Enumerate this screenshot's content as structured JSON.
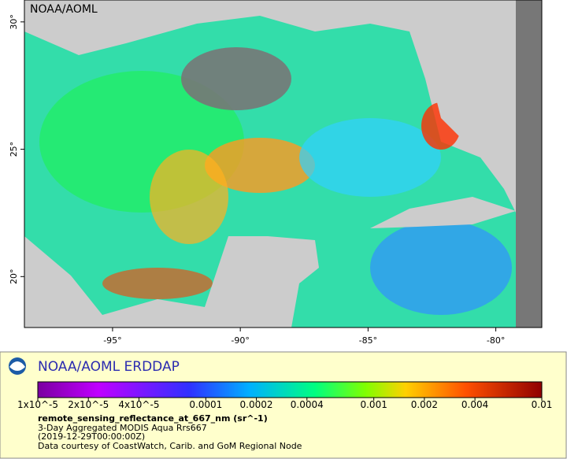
{
  "map": {
    "corner_label": "NOAA/AOML",
    "xlim": [
      -98.45,
      -78.2
    ],
    "ylim": [
      18.0,
      30.86
    ],
    "xticks": [
      {
        "value": -95,
        "label": "-95°"
      },
      {
        "value": -90,
        "label": "-90°"
      },
      {
        "value": -85,
        "label": "-85°"
      },
      {
        "value": -80,
        "label": "-80°"
      }
    ],
    "yticks": [
      {
        "value": 20,
        "label": "20°"
      },
      {
        "value": 25,
        "label": "25°"
      },
      {
        "value": 30,
        "label": "30°"
      }
    ]
  },
  "legend": {
    "title": "NOAA/AOML ERDDAP",
    "colorbar": {
      "log_scale": true,
      "lim": [
        1e-05,
        0.01
      ],
      "ticks": [
        {
          "value": 1e-05,
          "label": "1x10^-5"
        },
        {
          "value": 2e-05,
          "label": "2x10^-5"
        },
        {
          "value": 4e-05,
          "label": "4x10^-5"
        },
        {
          "value": 0.0001,
          "label": "0.0001"
        },
        {
          "value": 0.0002,
          "label": "0.0002"
        },
        {
          "value": 0.0004,
          "label": "0.0004"
        },
        {
          "value": 0.001,
          "label": "0.001"
        },
        {
          "value": 0.002,
          "label": "0.002"
        },
        {
          "value": 0.004,
          "label": "0.004"
        },
        {
          "value": 0.01,
          "label": "0.01"
        }
      ]
    },
    "variable": "remote_sensing_reflectance_at_667_nm (sr^-1)",
    "lines": [
      "3-Day Aggregated MODIS Aqua Rrs667",
      "(2019-12-29T00:00:00Z)",
      "Data courtesy of CoastWatch, Carib. and GoM Regional Node"
    ]
  }
}
